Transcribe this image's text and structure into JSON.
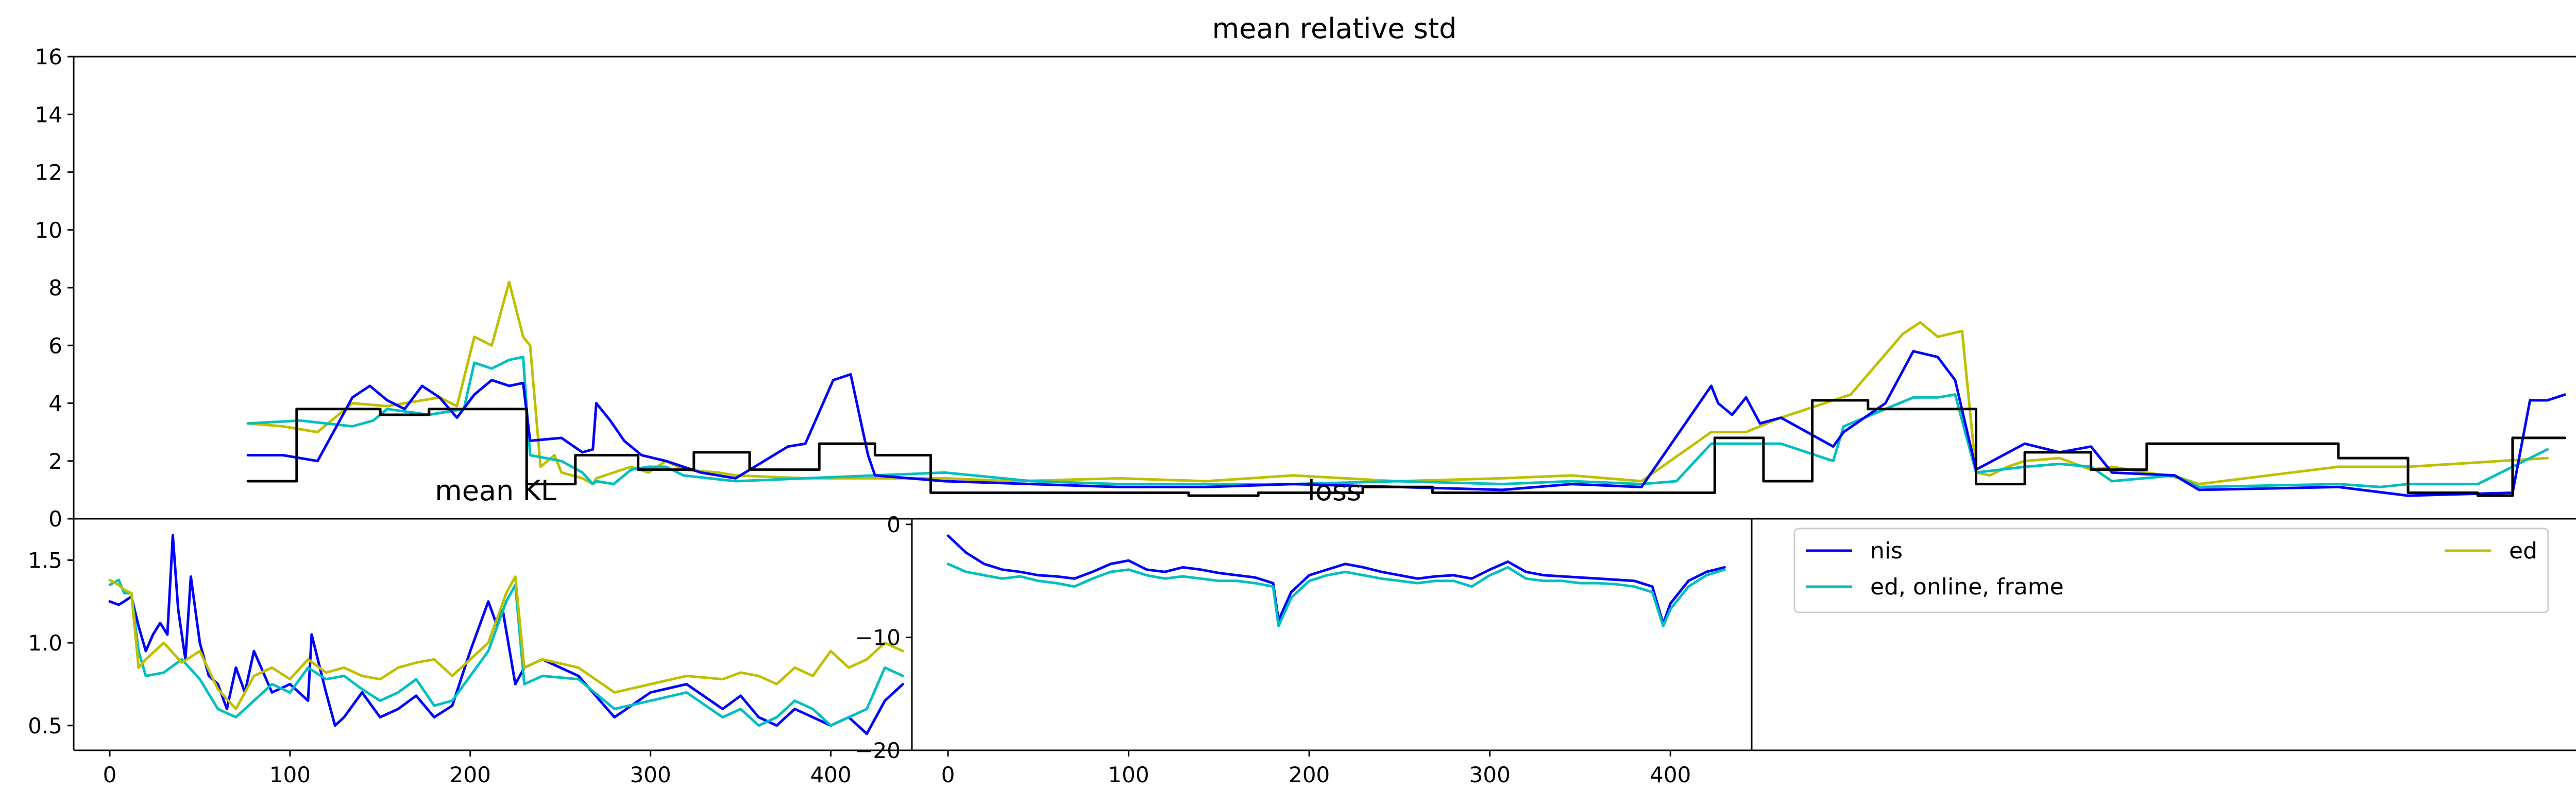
{
  "chart_data": [
    {
      "id": "top",
      "type": "line",
      "title": "mean relative std",
      "ylim": [
        0,
        16
      ],
      "yticks": [
        0,
        2,
        4,
        6,
        8,
        10,
        12,
        14,
        16
      ],
      "x_range": [
        -50,
        675
      ],
      "series": [
        {
          "name": "ed",
          "color": "#bfbf00",
          "x": [
            0,
            10,
            20,
            30,
            40,
            55,
            60,
            65,
            70,
            75,
            79,
            81,
            84,
            88,
            90,
            96,
            99,
            100,
            110,
            115,
            120,
            125,
            135,
            140,
            160,
            178,
            200,
            220,
            250,
            275,
            300,
            330,
            360,
            380,
            400,
            420,
            430,
            440,
            460,
            475,
            480,
            485,
            492,
            496,
            500,
            505,
            510,
            520,
            529,
            535,
            555,
            560,
            580,
            600,
            620,
            660
          ],
          "values": [
            3.3,
            3.2,
            3.0,
            4.0,
            3.9,
            4.2,
            3.9,
            6.3,
            6.0,
            8.2,
            6.3,
            6.0,
            1.8,
            2.2,
            1.6,
            1.4,
            1.2,
            1.4,
            1.8,
            1.6,
            2.0,
            1.7,
            1.6,
            1.5,
            1.4,
            1.4,
            1.4,
            1.3,
            1.4,
            1.3,
            1.5,
            1.3,
            1.4,
            1.5,
            1.3,
            3.0,
            3.0,
            3.5,
            4.3,
            6.4,
            6.8,
            6.3,
            6.5,
            1.6,
            1.5,
            1.8,
            2.0,
            2.1,
            1.7,
            1.8,
            1.4,
            1.2,
            1.5,
            1.8,
            1.8,
            2.1
          ]
        },
        {
          "name": "ed, online, frame",
          "color": "#00bfbf",
          "x": [
            0,
            15,
            30,
            36,
            40,
            52,
            62,
            65,
            70,
            75,
            79,
            81,
            90,
            96,
            99,
            100,
            105,
            110,
            115,
            120,
            125,
            140,
            160,
            180,
            200,
            225,
            250,
            275,
            300,
            330,
            360,
            380,
            400,
            410,
            420,
            440,
            455,
            458,
            470,
            478,
            485,
            490,
            496,
            510,
            520,
            529,
            535,
            553,
            560,
            600,
            612,
            620,
            640,
            660
          ],
          "values": [
            3.3,
            3.4,
            3.2,
            3.4,
            3.8,
            3.6,
            3.8,
            5.4,
            5.2,
            5.5,
            5.6,
            2.2,
            2.0,
            1.6,
            1.2,
            1.3,
            1.2,
            1.7,
            1.8,
            1.8,
            1.5,
            1.3,
            1.4,
            1.5,
            1.6,
            1.3,
            1.2,
            1.2,
            1.2,
            1.3,
            1.2,
            1.3,
            1.2,
            1.3,
            2.6,
            2.6,
            2.0,
            3.2,
            3.8,
            4.2,
            4.2,
            4.3,
            1.6,
            1.8,
            1.9,
            1.8,
            1.3,
            1.5,
            1.1,
            1.2,
            1.1,
            1.2,
            1.2,
            2.4
          ]
        },
        {
          "name": "nis",
          "color": "#0000ff",
          "x": [
            0,
            10,
            20,
            30,
            35,
            40,
            45,
            50,
            55,
            60,
            65,
            70,
            75,
            79,
            81,
            90,
            96,
            99,
            100,
            104,
            108,
            113,
            120,
            130,
            140,
            155,
            160,
            168,
            173,
            178,
            180,
            200,
            225,
            250,
            275,
            300,
            330,
            360,
            380,
            400,
            420,
            422,
            426,
            430,
            434,
            440,
            455,
            458,
            470,
            478,
            485,
            490,
            496,
            510,
            520,
            529,
            535,
            553,
            560,
            600,
            620,
            650,
            655,
            660,
            665
          ],
          "values": [
            2.2,
            2.2,
            2.0,
            4.2,
            4.6,
            4.1,
            3.8,
            4.6,
            4.2,
            3.5,
            4.3,
            4.8,
            4.6,
            4.7,
            2.7,
            2.8,
            2.3,
            2.4,
            4.0,
            3.4,
            2.7,
            2.2,
            2.0,
            1.6,
            1.4,
            2.5,
            2.6,
            4.8,
            5.0,
            2.2,
            1.5,
            1.3,
            1.2,
            1.1,
            1.1,
            1.2,
            1.1,
            1.0,
            1.2,
            1.1,
            4.6,
            4.0,
            3.6,
            4.2,
            3.3,
            3.5,
            2.5,
            3.0,
            4.0,
            5.8,
            5.6,
            4.8,
            1.7,
            2.6,
            2.3,
            2.5,
            1.6,
            1.5,
            1.0,
            1.1,
            0.8,
            0.9,
            4.1,
            4.1,
            4.3
          ]
        },
        {
          "name": "",
          "color": "#000000",
          "x": [
            0,
            14,
            14,
            38,
            38,
            52,
            52,
            66,
            66,
            80,
            80,
            94,
            94,
            112,
            112,
            128,
            128,
            144,
            144,
            164,
            164,
            180,
            180,
            196,
            196,
            270,
            270,
            290,
            290,
            320,
            320,
            340,
            340,
            421,
            421,
            435,
            435,
            449,
            449,
            465,
            465,
            496,
            496,
            510,
            510,
            529,
            529,
            545,
            545,
            600,
            600,
            620,
            620,
            640,
            640,
            650,
            650,
            665
          ],
          "values": [
            1.3,
            1.3,
            3.8,
            3.8,
            3.6,
            3.6,
            3.8,
            3.8,
            3.8,
            3.8,
            1.2,
            1.2,
            2.2,
            2.2,
            1.7,
            1.7,
            2.3,
            2.3,
            1.7,
            1.7,
            2.6,
            2.6,
            2.2,
            2.2,
            0.9,
            0.9,
            0.8,
            0.8,
            0.9,
            0.9,
            1.1,
            1.1,
            0.9,
            0.9,
            2.8,
            2.8,
            1.3,
            1.3,
            4.1,
            4.1,
            3.8,
            3.8,
            1.2,
            1.2,
            2.3,
            2.3,
            1.7,
            1.7,
            2.6,
            2.6,
            2.1,
            2.1,
            0.9,
            0.9,
            0.8,
            0.8,
            2.8,
            2.8
          ]
        }
      ]
    },
    {
      "id": "bottom-left",
      "type": "line",
      "title": "mean KL",
      "ylim": [
        0.35,
        1.75
      ],
      "yticks": [
        0.5,
        1.0,
        1.5
      ],
      "ytick_labels": [
        "0.5",
        "1.0",
        "1.5"
      ],
      "xlim": [
        -20,
        445
      ],
      "xticks": [
        0,
        100,
        200,
        300,
        400
      ],
      "series": [
        {
          "name": "nis",
          "color": "#0000ff",
          "x": [
            0,
            5,
            8,
            12,
            16,
            20,
            24,
            28,
            32,
            35,
            38,
            42,
            45,
            50,
            55,
            60,
            65,
            70,
            75,
            80,
            90,
            100,
            110,
            112,
            120,
            125,
            130,
            140,
            150,
            160,
            170,
            180,
            190,
            200,
            210,
            215,
            218,
            225,
            230,
            240,
            260,
            280,
            300,
            320,
            340,
            350,
            360,
            370,
            380,
            390,
            400,
            410,
            420,
            430,
            440
          ],
          "values": [
            1.25,
            1.23,
            1.25,
            1.28,
            1.1,
            0.95,
            1.05,
            1.12,
            1.05,
            1.65,
            1.2,
            0.9,
            1.4,
            1.0,
            0.8,
            0.75,
            0.6,
            0.85,
            0.7,
            0.95,
            0.7,
            0.75,
            0.65,
            1.05,
            0.7,
            0.5,
            0.55,
            0.7,
            0.55,
            0.6,
            0.68,
            0.55,
            0.62,
            0.95,
            1.25,
            1.1,
            1.2,
            0.75,
            0.85,
            0.9,
            0.8,
            0.55,
            0.7,
            0.75,
            0.6,
            0.68,
            0.55,
            0.5,
            0.6,
            0.55,
            0.5,
            0.55,
            0.45,
            0.65,
            0.75
          ]
        },
        {
          "name": "ed, online, frame",
          "color": "#00bfbf",
          "x": [
            0,
            5,
            8,
            12,
            16,
            20,
            30,
            40,
            50,
            60,
            70,
            80,
            90,
            100,
            110,
            120,
            130,
            140,
            150,
            160,
            170,
            180,
            190,
            200,
            210,
            220,
            225,
            230,
            240,
            260,
            280,
            300,
            320,
            340,
            350,
            360,
            370,
            380,
            390,
            400,
            410,
            420,
            430,
            440
          ],
          "values": [
            1.35,
            1.38,
            1.3,
            1.3,
            0.95,
            0.8,
            0.82,
            0.9,
            0.78,
            0.6,
            0.55,
            0.65,
            0.75,
            0.7,
            0.85,
            0.78,
            0.8,
            0.72,
            0.65,
            0.7,
            0.78,
            0.62,
            0.65,
            0.8,
            0.95,
            1.25,
            1.35,
            0.75,
            0.8,
            0.78,
            0.6,
            0.65,
            0.7,
            0.55,
            0.6,
            0.5,
            0.55,
            0.65,
            0.6,
            0.5,
            0.55,
            0.6,
            0.85,
            0.8
          ]
        },
        {
          "name": "ed",
          "color": "#bfbf00",
          "x": [
            0,
            5,
            8,
            12,
            16,
            20,
            30,
            40,
            50,
            60,
            70,
            80,
            90,
            100,
            110,
            120,
            130,
            140,
            150,
            160,
            170,
            180,
            190,
            200,
            210,
            220,
            225,
            230,
            240,
            260,
            280,
            300,
            320,
            340,
            350,
            360,
            370,
            380,
            390,
            400,
            410,
            420,
            430,
            440
          ],
          "values": [
            1.38,
            1.35,
            1.32,
            1.3,
            0.85,
            0.9,
            1.0,
            0.88,
            0.95,
            0.72,
            0.6,
            0.8,
            0.85,
            0.78,
            0.9,
            0.82,
            0.85,
            0.8,
            0.78,
            0.85,
            0.88,
            0.9,
            0.8,
            0.9,
            1.0,
            1.3,
            1.4,
            0.85,
            0.9,
            0.85,
            0.7,
            0.75,
            0.8,
            0.78,
            0.82,
            0.8,
            0.75,
            0.85,
            0.8,
            0.95,
            0.85,
            0.9,
            1.0,
            0.95
          ]
        }
      ]
    },
    {
      "id": "bottom-middle",
      "type": "line",
      "title": "loss",
      "ylim": [
        -20,
        0.5
      ],
      "yticks": [
        0,
        -10,
        -20
      ],
      "ytick_labels": [
        "0",
        "−10",
        "−20"
      ],
      "xlim": [
        -20,
        445
      ],
      "xticks": [
        0,
        100,
        200,
        300,
        400
      ],
      "series": [
        {
          "name": "nis",
          "color": "#0000ff",
          "x": [
            0,
            10,
            20,
            30,
            40,
            50,
            60,
            70,
            80,
            90,
            100,
            110,
            120,
            130,
            140,
            150,
            160,
            170,
            180,
            183,
            190,
            200,
            210,
            220,
            230,
            240,
            250,
            260,
            270,
            280,
            290,
            300,
            310,
            320,
            330,
            340,
            350,
            360,
            370,
            380,
            390,
            396,
            400,
            410,
            420,
            430
          ],
          "values": [
            -1.0,
            -2.5,
            -3.5,
            -4.0,
            -4.2,
            -4.5,
            -4.6,
            -4.8,
            -4.2,
            -3.5,
            -3.2,
            -4.0,
            -4.2,
            -3.8,
            -4.0,
            -4.3,
            -4.5,
            -4.7,
            -5.2,
            -8.5,
            -6.0,
            -4.5,
            -4.0,
            -3.5,
            -3.8,
            -4.2,
            -4.5,
            -4.8,
            -4.6,
            -4.5,
            -4.8,
            -4.0,
            -3.3,
            -4.2,
            -4.5,
            -4.6,
            -4.7,
            -4.8,
            -4.9,
            -5.0,
            -5.5,
            -8.8,
            -7.0,
            -5.0,
            -4.2,
            -3.8
          ]
        },
        {
          "name": "ed, online, frame",
          "color": "#00bfbf",
          "x": [
            0,
            10,
            20,
            30,
            40,
            50,
            60,
            70,
            80,
            90,
            100,
            110,
            120,
            130,
            140,
            150,
            160,
            170,
            180,
            183,
            190,
            200,
            210,
            220,
            230,
            240,
            250,
            260,
            270,
            280,
            290,
            300,
            310,
            320,
            330,
            340,
            350,
            360,
            370,
            380,
            390,
            396,
            400,
            410,
            420,
            430
          ],
          "values": [
            -3.5,
            -4.2,
            -4.5,
            -4.8,
            -4.6,
            -5.0,
            -5.2,
            -5.5,
            -4.8,
            -4.2,
            -4.0,
            -4.5,
            -4.8,
            -4.6,
            -4.8,
            -5.0,
            -5.0,
            -5.2,
            -5.5,
            -9.0,
            -6.5,
            -5.0,
            -4.5,
            -4.2,
            -4.5,
            -4.8,
            -5.0,
            -5.2,
            -5.0,
            -5.0,
            -5.5,
            -4.5,
            -3.8,
            -4.8,
            -5.0,
            -5.0,
            -5.2,
            -5.2,
            -5.3,
            -5.5,
            -6.0,
            -9.0,
            -7.5,
            -5.5,
            -4.5,
            -4.0
          ]
        }
      ]
    }
  ],
  "legend": {
    "placement": "upper-right",
    "entries": [
      {
        "label": "nis",
        "color": "#0000ff"
      },
      {
        "label": "ed, online, frame",
        "color": "#00bfbf"
      },
      {
        "label": "ed",
        "color": "#bfbf00"
      }
    ]
  }
}
